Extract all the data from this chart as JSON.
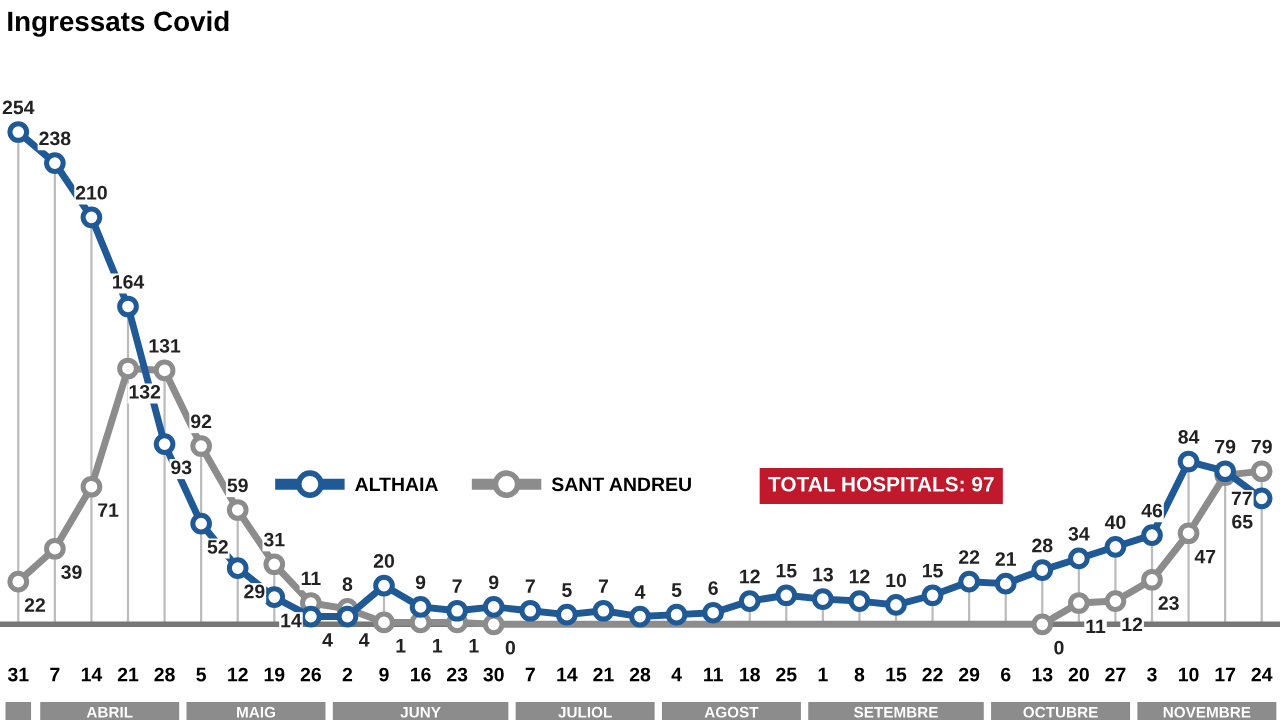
{
  "chart_data": {
    "type": "line",
    "title": "Ingressats Covid",
    "categories": [
      "31",
      "7",
      "14",
      "21",
      "28",
      "5",
      "12",
      "19",
      "26",
      "2",
      "9",
      "16",
      "23",
      "30",
      "7",
      "14",
      "21",
      "28",
      "4",
      "11",
      "18",
      "25",
      "1",
      "8",
      "15",
      "22",
      "29",
      "6",
      "13",
      "20",
      "27",
      "3",
      "10",
      "17",
      "24"
    ],
    "series": [
      {
        "name": "ALTHAIA",
        "color": "#1f5a96",
        "values": [
          254,
          238,
          210,
          164,
          93,
          52,
          29,
          14,
          4,
          4,
          20,
          9,
          7,
          9,
          7,
          5,
          7,
          4,
          5,
          6,
          12,
          15,
          13,
          12,
          10,
          15,
          22,
          21,
          28,
          34,
          40,
          46,
          84,
          79,
          65
        ]
      },
      {
        "name": "SANT ANDREU",
        "color": "#8c8c8c",
        "values": [
          22,
          39,
          71,
          132,
          131,
          92,
          59,
          31,
          11,
          8,
          1,
          1,
          1,
          0,
          0,
          0,
          0,
          0,
          0,
          0,
          0,
          0,
          0,
          0,
          0,
          0,
          0,
          0,
          0,
          11,
          12,
          23,
          47,
          77,
          79
        ],
        "value_labels": [
          "22",
          "39",
          "71",
          "132",
          "131",
          "92",
          "59",
          "31",
          "11",
          "8",
          "1",
          "1",
          "1",
          "0",
          null,
          null,
          null,
          null,
          null,
          null,
          null,
          null,
          null,
          null,
          null,
          null,
          null,
          null,
          "0",
          "11",
          "12",
          "23",
          "47",
          "77",
          "79"
        ]
      }
    ],
    "annotations": [
      "TOTAL HOSPITALS: 97",
      "ABRIL",
      "MAIG",
      "JUNY",
      "JULIOL",
      "AGOST",
      "SETEMBRE",
      "OCTUBRE",
      "NOVEMBRE"
    ],
    "data_labels": true,
    "legend": "center",
    "marker": "circle",
    "grid": "x",
    "tick_labels": "x"
  }
}
